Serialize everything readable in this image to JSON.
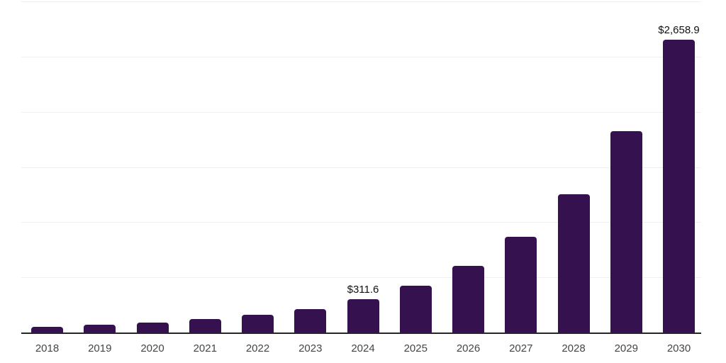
{
  "chart_data": {
    "type": "bar",
    "title": "",
    "xlabel": "",
    "ylabel": "",
    "categories": [
      "2018",
      "2019",
      "2020",
      "2021",
      "2022",
      "2023",
      "2024",
      "2025",
      "2026",
      "2027",
      "2028",
      "2029",
      "2030"
    ],
    "values": [
      59.9,
      79.0,
      98.9,
      128.5,
      165.2,
      218.5,
      311.6,
      432.9,
      608.6,
      876.1,
      1259.7,
      1831.9,
      2658.9
    ],
    "data_labels": {
      "2024": "$311.6",
      "2030": "$2,658.9"
    },
    "ylim": [
      0,
      3000
    ],
    "grid": true,
    "grid_step": 500,
    "legend_position": "none",
    "y_tick_labels_shown": false
  },
  "style": {
    "bar_color": "#35114F",
    "gridline_color": "#efefef",
    "axis_line_color": "#262626",
    "tick_label_color": "#454545",
    "data_label_color": "#111111",
    "background_color": "#ffffff"
  }
}
